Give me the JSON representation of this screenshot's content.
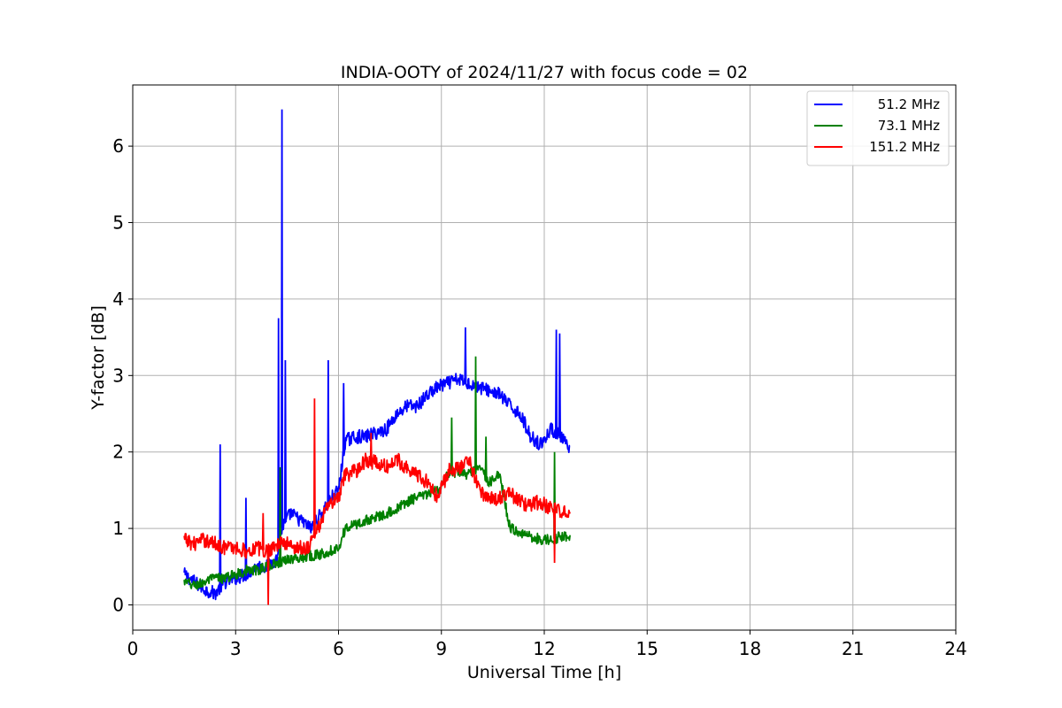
{
  "chart_data": {
    "type": "line",
    "title": "INDIA-OOTY of 2024/11/27 with focus code = 02",
    "xlabel": "Universal Time [h]",
    "ylabel": "Y-factor [dB]",
    "xlim": [
      0,
      24
    ],
    "ylim": [
      -0.33,
      6.8
    ],
    "xticks": [
      0,
      3,
      6,
      9,
      12,
      15,
      18,
      21,
      24
    ],
    "yticks": [
      0,
      1,
      2,
      3,
      4,
      5,
      6
    ],
    "grid": true,
    "legend_position": "top-right",
    "series": [
      {
        "name": "51.2 MHz",
        "color": "#0000ff",
        "x": [
          1.5,
          1.8,
          2.1,
          2.4,
          2.7,
          3.0,
          3.3,
          3.6,
          3.9,
          4.2,
          4.35,
          4.6,
          4.9,
          5.2,
          5.5,
          5.8,
          6.0,
          6.2,
          6.5,
          6.8,
          7.1,
          7.4,
          7.7,
          8.0,
          8.3,
          8.6,
          8.9,
          9.2,
          9.5,
          9.8,
          10.1,
          10.4,
          10.7,
          11.0,
          11.3,
          11.6,
          11.9,
          12.2,
          12.5,
          12.75
        ],
        "y": [
          0.4,
          0.3,
          0.2,
          0.15,
          0.3,
          0.35,
          0.4,
          0.5,
          0.5,
          0.6,
          1.0,
          1.2,
          1.1,
          1.0,
          1.2,
          1.4,
          1.5,
          2.15,
          2.2,
          2.2,
          2.25,
          2.3,
          2.5,
          2.6,
          2.6,
          2.75,
          2.85,
          2.9,
          2.95,
          2.9,
          2.85,
          2.8,
          2.75,
          2.6,
          2.5,
          2.2,
          2.1,
          2.3,
          2.2,
          2.0
        ],
        "spikes": [
          {
            "x": 2.55,
            "y": 2.1
          },
          {
            "x": 3.3,
            "y": 1.4
          },
          {
            "x": 4.25,
            "y": 3.75
          },
          {
            "x": 4.35,
            "y": 6.48
          },
          {
            "x": 4.45,
            "y": 3.2
          },
          {
            "x": 5.7,
            "y": 3.2
          },
          {
            "x": 6.15,
            "y": 2.9
          },
          {
            "x": 9.7,
            "y": 3.63
          },
          {
            "x": 12.35,
            "y": 3.6
          },
          {
            "x": 12.45,
            "y": 3.55
          }
        ]
      },
      {
        "name": "73.1 MHz",
        "color": "#008000",
        "x": [
          1.5,
          1.8,
          2.1,
          2.4,
          2.7,
          3.0,
          3.3,
          3.6,
          3.9,
          4.2,
          4.5,
          4.8,
          5.1,
          5.4,
          5.7,
          6.0,
          6.2,
          6.5,
          6.8,
          7.1,
          7.4,
          7.7,
          8.0,
          8.3,
          8.6,
          8.9,
          9.2,
          9.5,
          9.8,
          10.1,
          10.4,
          10.7,
          11.0,
          11.3,
          11.6,
          11.9,
          12.2,
          12.5,
          12.75
        ],
        "y": [
          0.3,
          0.25,
          0.3,
          0.35,
          0.35,
          0.4,
          0.45,
          0.45,
          0.5,
          0.55,
          0.6,
          0.6,
          0.65,
          0.65,
          0.7,
          0.75,
          1.0,
          1.05,
          1.1,
          1.15,
          1.2,
          1.25,
          1.35,
          1.4,
          1.45,
          1.5,
          1.7,
          1.75,
          1.7,
          1.8,
          1.6,
          1.7,
          1.0,
          0.95,
          0.9,
          0.85,
          0.85,
          0.9,
          0.9
        ],
        "spikes": [
          {
            "x": 4.3,
            "y": 1.8
          },
          {
            "x": 9.3,
            "y": 2.45
          },
          {
            "x": 10.0,
            "y": 3.25
          },
          {
            "x": 10.3,
            "y": 2.2
          },
          {
            "x": 12.3,
            "y": 2.0
          }
        ]
      },
      {
        "name": "151.2 MHz",
        "color": "#ff0000",
        "x": [
          1.5,
          1.8,
          2.1,
          2.4,
          2.7,
          3.0,
          3.3,
          3.6,
          3.9,
          4.2,
          4.5,
          4.8,
          5.1,
          5.4,
          5.7,
          6.0,
          6.2,
          6.5,
          6.8,
          7.1,
          7.4,
          7.7,
          8.0,
          8.3,
          8.6,
          8.9,
          9.2,
          9.5,
          9.8,
          10.1,
          10.4,
          10.7,
          11.0,
          11.3,
          11.6,
          11.9,
          12.2,
          12.5,
          12.75
        ],
        "y": [
          0.85,
          0.8,
          0.85,
          0.8,
          0.75,
          0.75,
          0.7,
          0.75,
          0.7,
          0.8,
          0.8,
          0.75,
          0.75,
          1.0,
          1.3,
          1.4,
          1.7,
          1.75,
          1.9,
          1.85,
          1.8,
          1.9,
          1.8,
          1.7,
          1.6,
          1.4,
          1.75,
          1.8,
          1.9,
          1.5,
          1.4,
          1.4,
          1.45,
          1.35,
          1.3,
          1.35,
          1.25,
          1.2,
          1.25
        ],
        "spikes": [
          {
            "x": 3.8,
            "y": 1.2
          },
          {
            "x": 3.95,
            "y": 0.0
          },
          {
            "x": 5.3,
            "y": 2.7
          },
          {
            "x": 6.95,
            "y": 2.25
          },
          {
            "x": 12.3,
            "y": 0.55
          }
        ]
      }
    ]
  }
}
